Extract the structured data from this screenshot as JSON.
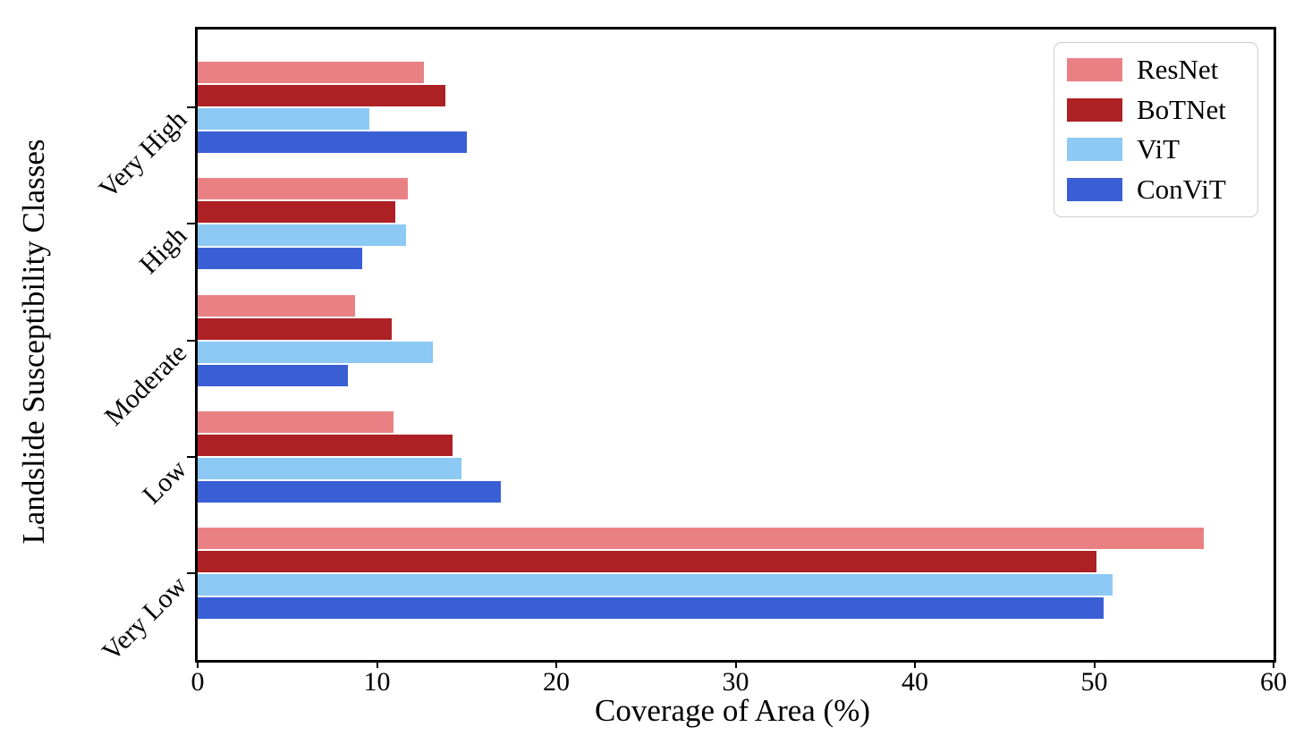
{
  "figure": {
    "background": "#ffffff",
    "axis_color": "#000000"
  },
  "chart_data": {
    "type": "bar",
    "orientation": "horizontal",
    "title": "",
    "xlabel": "Coverage of Area (%)",
    "ylabel": "Landslide Susceptibility Classes",
    "categories": [
      "Very High",
      "High",
      "Moderate",
      "Low",
      "Very Low"
    ],
    "series": [
      {
        "name": "ResNet",
        "color": "#E98184",
        "values": [
          12.6,
          11.7,
          8.8,
          10.9,
          56.1
        ]
      },
      {
        "name": "BoTNet",
        "color": "#AD2024",
        "values": [
          13.8,
          11.0,
          10.8,
          14.2,
          50.1
        ]
      },
      {
        "name": "ViT",
        "color": "#8CC9F4",
        "values": [
          9.6,
          11.6,
          13.1,
          14.7,
          51.0
        ]
      },
      {
        "name": "ConViT",
        "color": "#3A5FD5",
        "values": [
          15.0,
          9.2,
          8.4,
          16.9,
          50.5
        ]
      }
    ],
    "xlim": [
      0,
      60
    ],
    "xticks": [
      "0",
      "10",
      "20",
      "30",
      "40",
      "50",
      "60"
    ],
    "grid": false,
    "legend_position": "upper right",
    "tick_label_rotation_y_deg": 45
  }
}
